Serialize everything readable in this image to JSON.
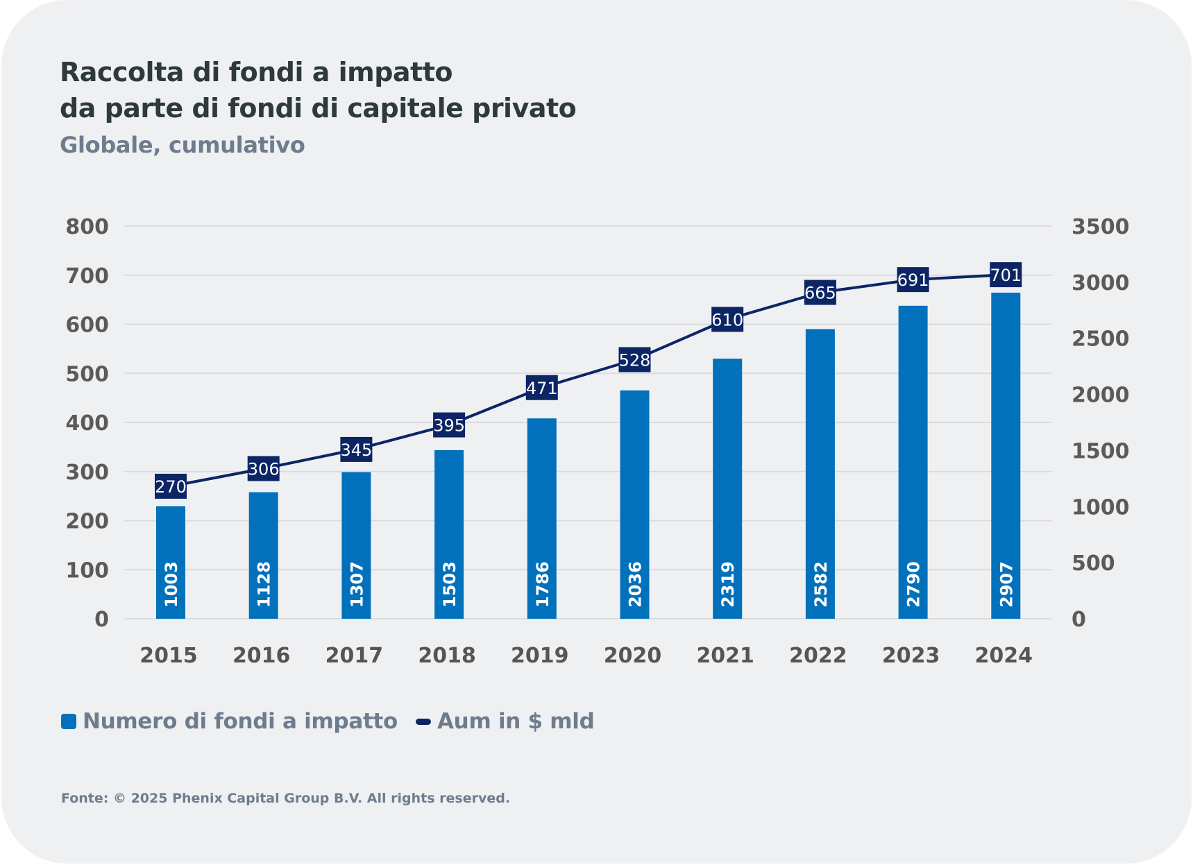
{
  "header": {
    "title_line1": "Raccolta di fondi a impatto",
    "title_line2": "da parte di fondi di capitale privato",
    "subtitle": "Globale, cumulativo"
  },
  "colors": {
    "bar": "#0271BC",
    "line": "#0B2565",
    "grid": "#D9DBDF",
    "background": "#EFF0F2"
  },
  "chart_data": {
    "type": "bar",
    "title": "Raccolta di fondi a impatto da parte di fondi di capitale privato",
    "subtitle": "Globale, cumulativo",
    "categories": [
      "2015",
      "2016",
      "2017",
      "2018",
      "2019",
      "2020",
      "2021",
      "2022",
      "2023",
      "2024"
    ],
    "series": [
      {
        "name": "Numero di fondi a impatto",
        "type": "bar",
        "axis": "right",
        "values": [
          1003,
          1128,
          1307,
          1503,
          1786,
          2036,
          2319,
          2582,
          2790,
          2907
        ]
      },
      {
        "name": "Aum in $ mld",
        "type": "line",
        "axis": "left",
        "values": [
          270,
          306,
          345,
          395,
          471,
          528,
          610,
          665,
          691,
          701
        ]
      }
    ],
    "y_left": {
      "ylim": [
        0,
        800
      ],
      "ticks": [
        "0",
        "100",
        "200",
        "300",
        "400",
        "500",
        "600",
        "700",
        "800"
      ]
    },
    "y_right": {
      "ylim": [
        0,
        3500
      ],
      "ticks": [
        "0",
        "500",
        "1000",
        "1500",
        "2000",
        "2500",
        "3000",
        "3500"
      ]
    },
    "xlabel": "",
    "ylabel": "",
    "grid": true,
    "legend_position": "bottom-left"
  },
  "legend": {
    "items": [
      {
        "label": "Numero di fondi a impatto"
      },
      {
        "label": "Aum in $ mld"
      }
    ]
  },
  "footer": {
    "source": "Fonte: © 2025 Phenix Capital Group B.V. All rights reserved."
  }
}
